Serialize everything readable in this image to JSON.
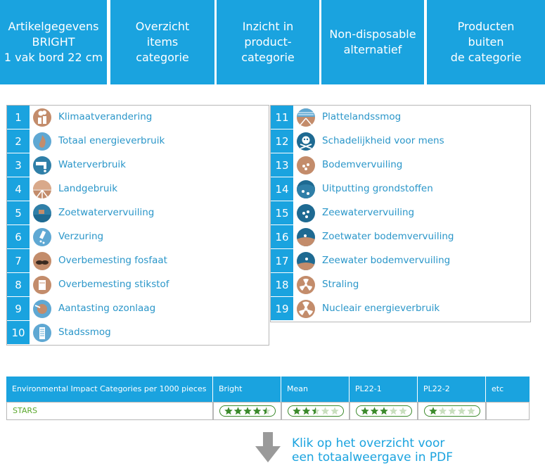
{
  "tabs": [
    {
      "label": "Artikelgegevens\nBRIGHT\n1 vak bord 22 cm"
    },
    {
      "label": "Overzicht\nitems\ncategorie"
    },
    {
      "label": "Inzicht in\nproduct-\ncategorie"
    },
    {
      "label": "Non-disposable\nalternatief"
    },
    {
      "label": "Producten\nbuiten\nde categorie"
    }
  ],
  "categories_left": [
    {
      "num": "1",
      "label": "Klimaatverandering",
      "icon": "factory-smoke-icon"
    },
    {
      "num": "2",
      "label": "Totaal energieverbruik",
      "icon": "flame-icon"
    },
    {
      "num": "3",
      "label": "Waterverbruik",
      "icon": "water-tap-icon"
    },
    {
      "num": "4",
      "label": "Landgebruik",
      "icon": "field-icon"
    },
    {
      "num": "5",
      "label": "Zoetwatervervuiling",
      "icon": "freshwater-pollution-icon"
    },
    {
      "num": "6",
      "label": "Verzuring",
      "icon": "acid-drop-icon"
    },
    {
      "num": "7",
      "label": "Overbemesting fosfaat",
      "icon": "phosphate-icon"
    },
    {
      "num": "8",
      "label": "Overbemesting stikstof",
      "icon": "nitrogen-icon"
    },
    {
      "num": "9",
      "label": "Aantasting ozonlaag",
      "icon": "ozone-icon"
    },
    {
      "num": "10",
      "label": "Stadssmog",
      "icon": "city-smog-icon"
    }
  ],
  "categories_right": [
    {
      "num": "11",
      "label": "Plattelandssmog",
      "icon": "rural-smog-icon"
    },
    {
      "num": "12",
      "label": "Schadelijkheid voor mens",
      "icon": "skull-icon"
    },
    {
      "num": "13",
      "label": "Bodemvervuiling",
      "icon": "soil-pollution-icon"
    },
    {
      "num": "14",
      "label": "Uitputting grondstoffen",
      "icon": "resource-depletion-icon"
    },
    {
      "num": "15",
      "label": "Zeewatervervuiling",
      "icon": "seawater-pollution-icon"
    },
    {
      "num": "16",
      "label": "Zoetwater bodemvervuiling",
      "icon": "freshwater-sediment-icon"
    },
    {
      "num": "17",
      "label": "Zeewater bodemvervuiling",
      "icon": "seawater-sediment-icon"
    },
    {
      "num": "18",
      "label": "Straling",
      "icon": "radiation-icon"
    },
    {
      "num": "19",
      "label": "Nucleair energieverbruik",
      "icon": "nuclear-icon"
    }
  ],
  "stars_table": {
    "header": [
      "Environmental Impact Categories per 1000 pieces",
      "Bright",
      "Mean",
      "PL22-1",
      "PL22-2",
      "etc"
    ],
    "row_label": "STARS",
    "ratings": [
      {
        "name": "Bright",
        "stars": 4.5
      },
      {
        "name": "Mean",
        "stars": 2.5
      },
      {
        "name": "PL22-1",
        "stars": 3
      },
      {
        "name": "PL22-2",
        "stars": 1
      }
    ],
    "max_stars": 5
  },
  "cta": {
    "text": "Klik op het overzicht voor\neen totaalweergave in PDF"
  },
  "colors": {
    "primary": "#1aa3df",
    "label": "#2a96c9",
    "star": "#3b8a2c",
    "brown": "#c38c6b",
    "teal": "#2f7fa8"
  }
}
